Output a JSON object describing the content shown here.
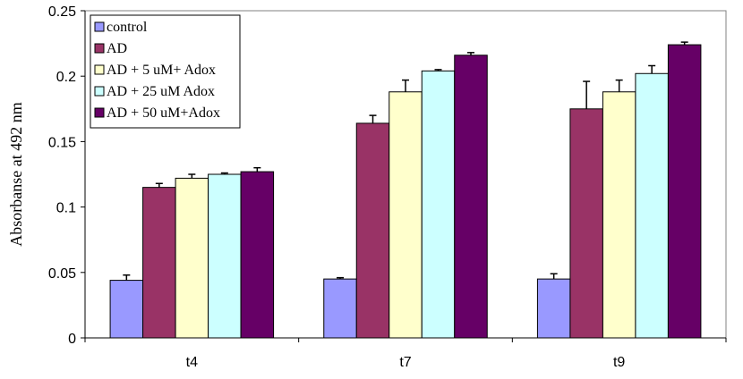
{
  "chart_data": {
    "type": "bar",
    "title": "",
    "xlabel": "",
    "ylabel": "Absorbanse at 492 nm",
    "ylim": [
      0,
      0.25
    ],
    "yticks": [
      "0",
      "0.05",
      "0.1",
      "0.15",
      "0.2",
      "0.25"
    ],
    "ytick_values": [
      0,
      0.05,
      0.1,
      0.15,
      0.2,
      0.25
    ],
    "grid": false,
    "legend_position": "top-left",
    "categories": [
      "t4",
      "t7",
      "t9"
    ],
    "series": [
      {
        "name": "control",
        "color": "#9999ff",
        "values": [
          0.044,
          0.045,
          0.045
        ],
        "errors": [
          0.004,
          0.001,
          0.004
        ]
      },
      {
        "name": "AD",
        "color": "#993366",
        "values": [
          0.115,
          0.164,
          0.175
        ],
        "errors": [
          0.003,
          0.006,
          0.021
        ]
      },
      {
        "name": "AD + 5 uM+ Adox",
        "color": "#ffffcc",
        "values": [
          0.122,
          0.188,
          0.188
        ],
        "errors": [
          0.003,
          0.009,
          0.009
        ]
      },
      {
        "name": "AD + 25 uM Adox",
        "color": "#ccffff",
        "values": [
          0.125,
          0.204,
          0.202
        ],
        "errors": [
          0.001,
          0.001,
          0.006
        ]
      },
      {
        "name": "AD + 50 uM+Adox",
        "color": "#660066",
        "values": [
          0.127,
          0.216,
          0.224
        ],
        "errors": [
          0.003,
          0.002,
          0.002
        ]
      }
    ]
  }
}
